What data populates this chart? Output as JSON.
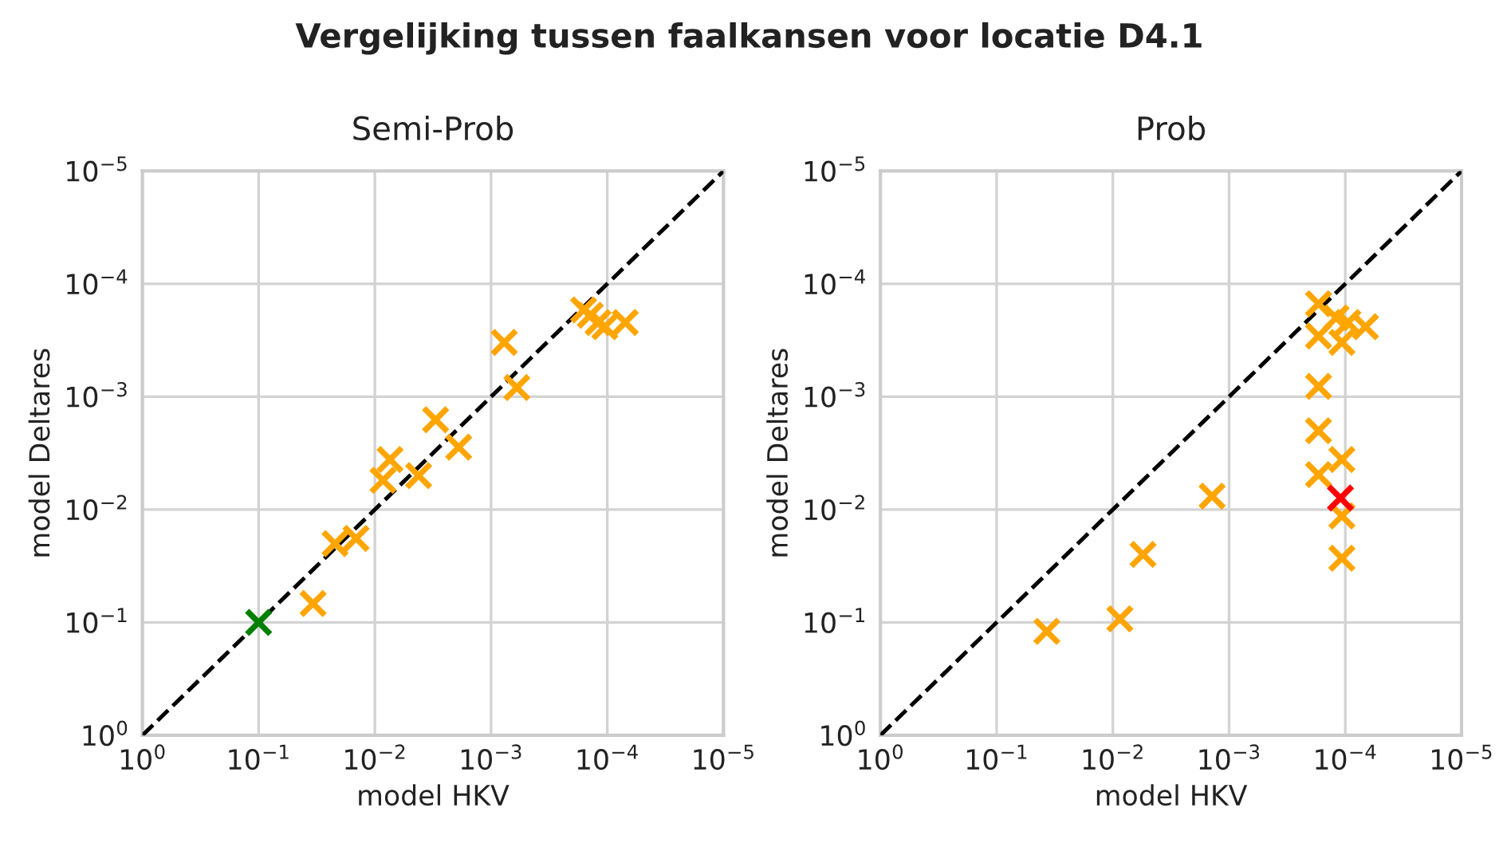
{
  "chart_data": [
    {
      "type": "scatter",
      "title": "Semi-Prob",
      "annotations": [
        "Vergelijking tussen faalkansen voor locatie D4.1"
      ],
      "xlabel": "model HKV",
      "ylabel": "model Deltares",
      "log": "xy",
      "grid": true,
      "marker": "cross",
      "legend": false,
      "xlim": [
        1,
        1e-05
      ],
      "ylim": [
        1,
        1e-05
      ],
      "xticks": [
        {
          "value": 1,
          "label": "10$^{0}$"
        },
        {
          "value": 0.1,
          "label": "10$^{−1}$"
        },
        {
          "value": 0.01,
          "label": "10$^{−2}$"
        },
        {
          "value": 0.001,
          "label": "10$^{−3}$"
        },
        {
          "value": 0.0001,
          "label": "10$^{−4}$"
        },
        {
          "value": 1e-05,
          "label": "10$^{−5}$"
        }
      ],
      "yticks": [
        {
          "value": 1,
          "label": "10$^{0}$"
        },
        {
          "value": 0.1,
          "label": "10$^{−1}$"
        },
        {
          "value": 0.01,
          "label": "10$^{−2}$"
        },
        {
          "value": 0.001,
          "label": "10$^{−3}$"
        },
        {
          "value": 0.0001,
          "label": "10$^{−4}$"
        },
        {
          "value": 1e-05,
          "label": "10$^{−5}$"
        }
      ],
      "series": [
        {
          "type": "line",
          "line_style": "dashed",
          "marker": "none",
          "color": "#000000",
          "x": [
            1,
            1e-05
          ],
          "values": [
            1,
            1e-05
          ]
        },
        {
          "color": "#ffa500",
          "x": [
            0.034,
            0.022,
            0.0145,
            0.0085,
            0.0074,
            0.0042,
            0.003,
            0.0019,
            0.00077,
            0.0006,
            0.00016,
            0.00014,
            0.00012,
            0.000105,
            7e-05
          ],
          "values": [
            0.068,
            0.02,
            0.018,
            0.0055,
            0.0036,
            0.005,
            0.0016,
            0.0028,
            0.00033,
            0.00083,
            0.00017,
            0.00019,
            0.00022,
            0.00024,
            0.00022
          ]
        },
        {
          "color": "#008000",
          "x": [
            0.1
          ],
          "values": [
            0.1
          ]
        }
      ]
    },
    {
      "type": "scatter",
      "title": "Prob",
      "xlabel": "model HKV",
      "ylabel": "model Deltares",
      "log": "xy",
      "grid": true,
      "marker": "cross",
      "legend": false,
      "xlim": [
        1,
        1e-05
      ],
      "ylim": [
        1,
        1e-05
      ],
      "xticks": [
        {
          "value": 1,
          "label": "10$^{0}$"
        },
        {
          "value": 0.1,
          "label": "10$^{−1}$"
        },
        {
          "value": 0.01,
          "label": "10$^{−2}$"
        },
        {
          "value": 0.001,
          "label": "10$^{−3}$"
        },
        {
          "value": 0.0001,
          "label": "10$^{−4}$"
        },
        {
          "value": 1e-05,
          "label": "10$^{−5}$"
        }
      ],
      "yticks": [
        {
          "value": 1,
          "label": "10$^{0}$"
        },
        {
          "value": 0.1,
          "label": "10$^{−1}$"
        },
        {
          "value": 0.01,
          "label": "10$^{−2}$"
        },
        {
          "value": 0.001,
          "label": "10$^{−3}$"
        },
        {
          "value": 0.0001,
          "label": "10$^{−4}$"
        },
        {
          "value": 1e-05,
          "label": "10$^{−5}$"
        }
      ],
      "series": [
        {
          "type": "line",
          "line_style": "dashed",
          "marker": "none",
          "color": "#000000",
          "x": [
            1,
            1e-05
          ],
          "values": [
            1,
            1e-05
          ]
        },
        {
          "color": "#ffa500",
          "x": [
            0.037,
            0.0087,
            0.0055,
            0.0014,
            0.00017,
            0.00017,
            0.00017,
            0.00017,
            0.00017,
            0.000107,
            0.000107,
            0.000107,
            0.000107,
            0.00012,
            9.5e-05,
            6.7e-05
          ],
          "values": [
            0.12,
            0.093,
            0.025,
            0.0076,
            0.0049,
            0.002,
            0.00081,
            0.00029,
            0.00015,
            0.0036,
            0.0114,
            0.027,
            0.00033,
            0.0002,
            0.00022,
            0.00024
          ]
        },
        {
          "color": "#ff0000",
          "x": [
            0.00011
          ],
          "values": [
            0.0079
          ]
        }
      ]
    }
  ]
}
